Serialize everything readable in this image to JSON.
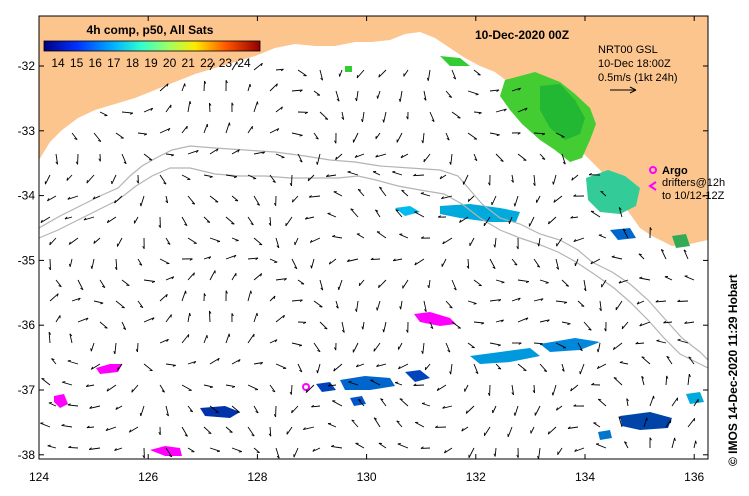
{
  "title": "10-Dec-2020 00Z",
  "colorbar": {
    "title": "4h comp, p50, All Sats",
    "ticks": [
      "14",
      "15",
      "16",
      "17",
      "18",
      "19",
      "20",
      "21",
      "22",
      "23",
      "24"
    ]
  },
  "info": {
    "line1": "NRT00 GSL",
    "line2": "10-Dec 18:00Z",
    "line3": "0.5m/s (1kt 24h)"
  },
  "legend": {
    "argo_label": "Argo",
    "drifters_line1": "drifters@12h",
    "drifters_line2": "to 10/12-12Z"
  },
  "credit": "© IMOS 14-Dec-2020 11:29 Hobart",
  "axes": {
    "x_ticks": [
      "124",
      "126",
      "128",
      "130",
      "132",
      "134",
      "136"
    ],
    "y_ticks": [
      "-32",
      "-33",
      "-34",
      "-35",
      "-36",
      "-37",
      "-38"
    ]
  },
  "colors": {
    "land": "#fcc58e",
    "bathy": "#b4b4b4",
    "argo": "#ff00ff"
  }
}
